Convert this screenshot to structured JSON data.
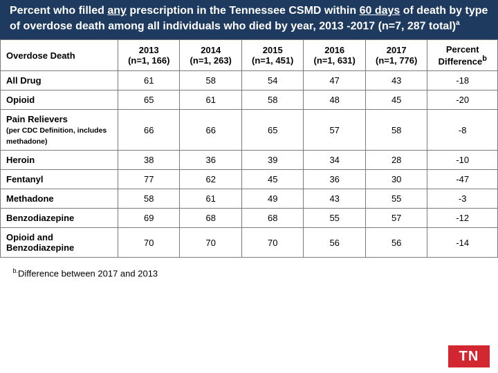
{
  "title": {
    "pre1": "Percent who filled ",
    "u1": "any",
    "mid1": " prescription in the Tennessee CSMD within ",
    "u2": "60 days",
    "mid2": " of death by type of overdose death among all individuals who died by year, 2013 -2017 (n=7, 287 total)",
    "sup": "a"
  },
  "headers": {
    "rowhead": "Overdose Death",
    "cols": [
      {
        "year": "2013",
        "n": "(n=1, 166)"
      },
      {
        "year": "2014",
        "n": "(n=1, 263)"
      },
      {
        "year": "2015",
        "n": "(n=1, 451)"
      },
      {
        "year": "2016",
        "n": "(n=1, 631)"
      },
      {
        "year": "2017",
        "n": "(n=1, 776)"
      }
    ],
    "diff_top": "Percent",
    "diff_bot": "Difference",
    "diff_sup": "b"
  },
  "rows": [
    {
      "label": "All Drug",
      "sub": "",
      "v": [
        "61",
        "58",
        "54",
        "47",
        "43",
        "-18"
      ]
    },
    {
      "label": "Opioid",
      "sub": "",
      "v": [
        "65",
        "61",
        "58",
        "48",
        "45",
        "-20"
      ]
    },
    {
      "label": "Pain Relievers",
      "sub": "(per CDC Definition, includes methadone)",
      "v": [
        "66",
        "66",
        "65",
        "57",
        "58",
        "-8"
      ]
    },
    {
      "label": "Heroin",
      "sub": "",
      "v": [
        "38",
        "36",
        "39",
        "34",
        "28",
        "-10"
      ]
    },
    {
      "label": "Fentanyl",
      "sub": "",
      "v": [
        "77",
        "62",
        "45",
        "36",
        "30",
        "-47"
      ]
    },
    {
      "label": "Methadone",
      "sub": "",
      "v": [
        "58",
        "61",
        "49",
        "43",
        "55",
        "-3"
      ]
    },
    {
      "label": "Benzodiazepine",
      "sub": "",
      "v": [
        "69",
        "68",
        "68",
        "55",
        "57",
        "-12"
      ]
    },
    {
      "label": "Opioid and Benzodiazepine",
      "sub": "",
      "v": [
        "70",
        "70",
        "70",
        "56",
        "56",
        "-14"
      ]
    }
  ],
  "footnote": {
    "sup": "b.",
    "text": "Difference between 2017 and 2013"
  },
  "logo": "TN",
  "colors": {
    "header_bg": "#1e3a5f",
    "logo_bg": "#d22630",
    "border": "#7a7a7a"
  }
}
